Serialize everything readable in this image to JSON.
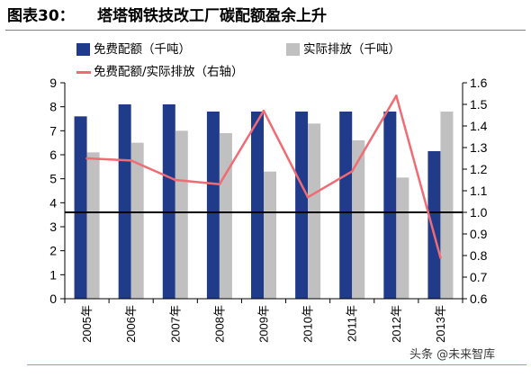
{
  "header": {
    "figure_label": "图表30："
  },
  "watermark": {
    "text": "头条 @未来智库"
  },
  "chart_data": {
    "type": "bar",
    "title": "塔塔钢铁技改工厂碳配额盈余上升",
    "xlabel": "",
    "ylabel": "",
    "categories": [
      "2005年",
      "2006年",
      "2007年",
      "2008年",
      "2009年",
      "2010年",
      "2011年",
      "2012年",
      "2013年"
    ],
    "series": [
      {
        "name": "免费配额（千吨）",
        "type": "bar",
        "axis": "left",
        "color": "#1F3B8A",
        "values": [
          7.6,
          8.1,
          8.1,
          7.8,
          7.8,
          7.8,
          7.8,
          7.8,
          6.15
        ]
      },
      {
        "name": "实际排放（千吨）",
        "type": "bar",
        "axis": "left",
        "color": "#C0C0C0",
        "values": [
          6.1,
          6.5,
          7.0,
          6.9,
          5.3,
          7.3,
          6.6,
          5.05,
          7.8
        ]
      },
      {
        "name": "免费配额/实际排放（右轴）",
        "type": "line",
        "axis": "right",
        "color": "#F06B73",
        "values": [
          1.25,
          1.24,
          1.15,
          1.13,
          1.47,
          1.07,
          1.19,
          1.54,
          0.79
        ]
      }
    ],
    "ylim": [
      0,
      9
    ],
    "yticks": [
      "0",
      "1",
      "2",
      "3",
      "4",
      "5",
      "6",
      "7",
      "8",
      "9"
    ],
    "y2lim": [
      0.6,
      1.6
    ],
    "y2ticks": [
      "0.6",
      "0.7",
      "0.8",
      "0.9",
      "1.0",
      "1.1",
      "1.2",
      "1.3",
      "1.4",
      "1.5",
      "1.6"
    ],
    "reference_line": {
      "axis": "right",
      "value": 1.0,
      "color": "#000000"
    },
    "legend_position": "top",
    "grid": false
  }
}
